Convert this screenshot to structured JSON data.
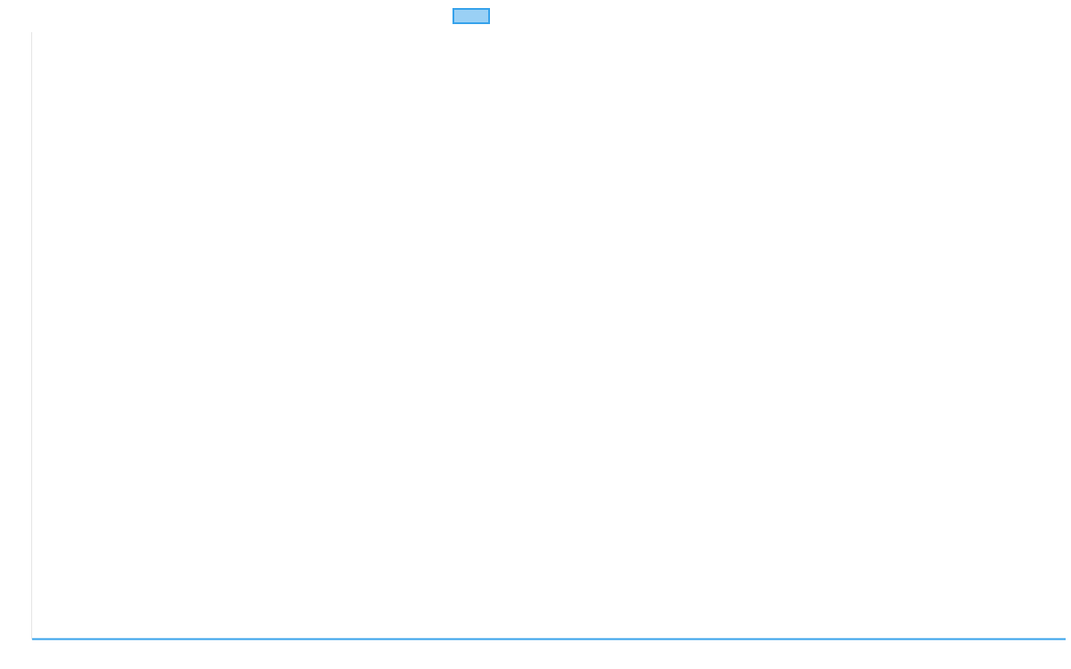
{
  "chart_data": {
    "type": "line",
    "title": "",
    "xlabel": "",
    "ylabel": "",
    "categories": [],
    "series": [
      {
        "values": [],
        "color": "#36a2eb",
        "fill": "#9ad0f5"
      }
    ],
    "legend": "top",
    "grid": false
  }
}
